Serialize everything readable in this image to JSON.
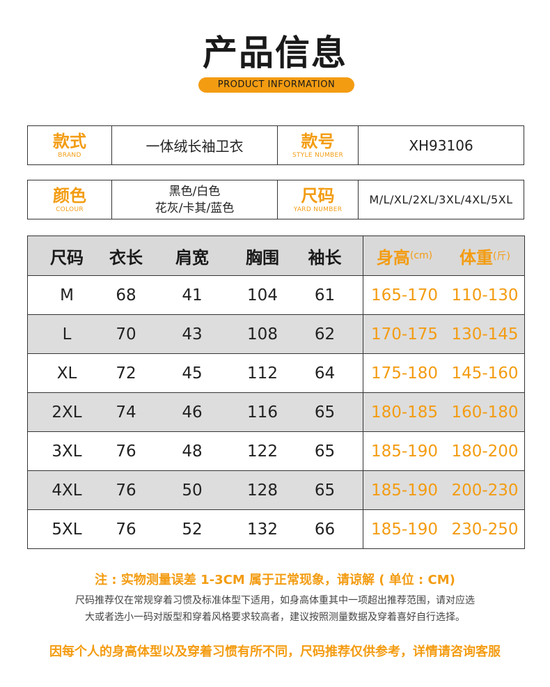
{
  "header": {
    "title": "产品信息",
    "subtitle": "PRODUCT INFORMATION"
  },
  "info_rows": [
    {
      "label1_cn": "款式",
      "label1_en": "BRAND",
      "value1": "一体绒长袖卫衣",
      "label2_cn": "款号",
      "label2_en": "STYLE NUMBER",
      "value2": "XH93106"
    },
    {
      "label1_cn": "颜色",
      "label1_en": "COLOUR",
      "value1_line1": "黑色/白色",
      "value1_line2": "花灰/卡其/蓝色",
      "label2_cn": "尺码",
      "label2_en": "YARD NUMBER",
      "value2": "M/L/XL/2XL/3XL/4XL/5XL"
    }
  ],
  "size_table": {
    "headers": {
      "size": "尺码",
      "length": "衣长",
      "shoulder": "肩宽",
      "chest": "胸围",
      "sleeve": "袖长",
      "height": "身高",
      "height_unit": "(cm)",
      "weight": "体重",
      "weight_unit": "(斤)"
    },
    "rows": [
      {
        "size": "M",
        "length": "68",
        "shoulder": "41",
        "chest": "104",
        "sleeve": "61",
        "height": "165-170",
        "weight": "110-130"
      },
      {
        "size": "L",
        "length": "70",
        "shoulder": "43",
        "chest": "108",
        "sleeve": "62",
        "height": "170-175",
        "weight": "130-145"
      },
      {
        "size": "XL",
        "length": "72",
        "shoulder": "45",
        "chest": "112",
        "sleeve": "64",
        "height": "175-180",
        "weight": "145-160"
      },
      {
        "size": "2XL",
        "length": "74",
        "shoulder": "46",
        "chest": "116",
        "sleeve": "65",
        "height": "180-185",
        "weight": "160-180"
      },
      {
        "size": "3XL",
        "length": "76",
        "shoulder": "48",
        "chest": "122",
        "sleeve": "65",
        "height": "185-190",
        "weight": "180-200"
      },
      {
        "size": "4XL",
        "length": "76",
        "shoulder": "50",
        "chest": "128",
        "sleeve": "65",
        "height": "185-190",
        "weight": "200-230"
      },
      {
        "size": "5XL",
        "length": "76",
        "shoulder": "52",
        "chest": "132",
        "sleeve": "66",
        "height": "185-190",
        "weight": "230-250"
      }
    ]
  },
  "notes": {
    "measure_note": "注 : 实物测量误差 1-3CM 属于正常现象，请谅解 ( 单位 : CM)",
    "recommend_line1": "尺码推荐仅在常规穿着习惯及标准体型下适用，如身高体重其中一项超出推荐范围，请对应选",
    "recommend_line2": "大或者选小一码对版型和穿着风格要求较高者，建议按照测量数据及穿着喜好自行选择。",
    "disclaimer": "因每个人的身高体型以及穿着习惯有所不同，尺码推荐仅供参考，详情请咨询客服"
  },
  "colors": {
    "accent": "#f39c12",
    "alt_row": "#dddddd"
  }
}
